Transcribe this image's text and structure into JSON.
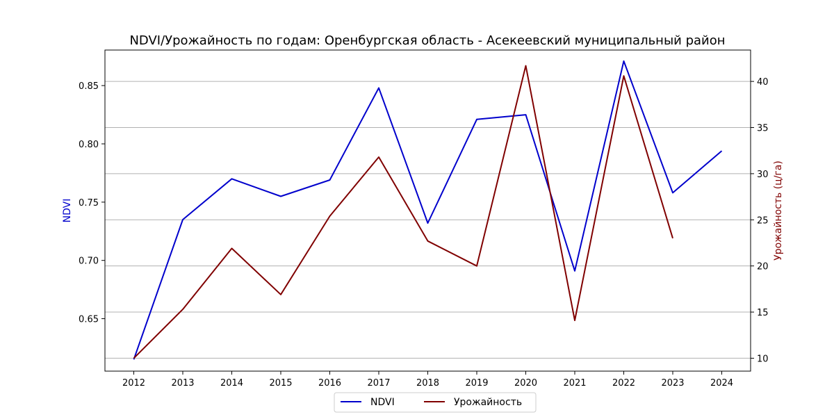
{
  "chart_data": {
    "type": "line",
    "title": "NDVI/Урожайность по годам: Оренбургская область - Асекеевский муниципальный район",
    "x": [
      "2012",
      "2013",
      "2014",
      "2015",
      "2016",
      "2017",
      "2018",
      "2019",
      "2020",
      "2021",
      "2022",
      "2023",
      "2024"
    ],
    "y_left": {
      "label": "NDVI",
      "color": "#0000cc",
      "ylim": [
        0.605,
        0.8805
      ],
      "ticks": [
        "0.65",
        "0.70",
        "0.75",
        "0.80",
        "0.85"
      ]
    },
    "y_right": {
      "label": "Урожайность (ц/га)",
      "color": "#800000",
      "ylim": [
        8.6,
        43.4
      ],
      "ticks": [
        "10",
        "15",
        "20",
        "25",
        "30",
        "35",
        "40"
      ]
    },
    "grid": "horizontal, right axis",
    "legend_position": "bottom-center",
    "series": [
      {
        "name": "NDVI",
        "axis": "left",
        "color": "#0000cc",
        "values": [
          0.615,
          0.735,
          0.77,
          0.755,
          0.769,
          0.848,
          0.732,
          0.821,
          0.825,
          0.691,
          0.871,
          0.758,
          0.794
        ]
      },
      {
        "name": "Урожайность",
        "axis": "right",
        "color": "#800000",
        "values": [
          10.0,
          15.3,
          21.9,
          16.9,
          25.4,
          31.8,
          22.7,
          20.0,
          41.7,
          14.1,
          40.6,
          23.0,
          null
        ]
      }
    ]
  }
}
